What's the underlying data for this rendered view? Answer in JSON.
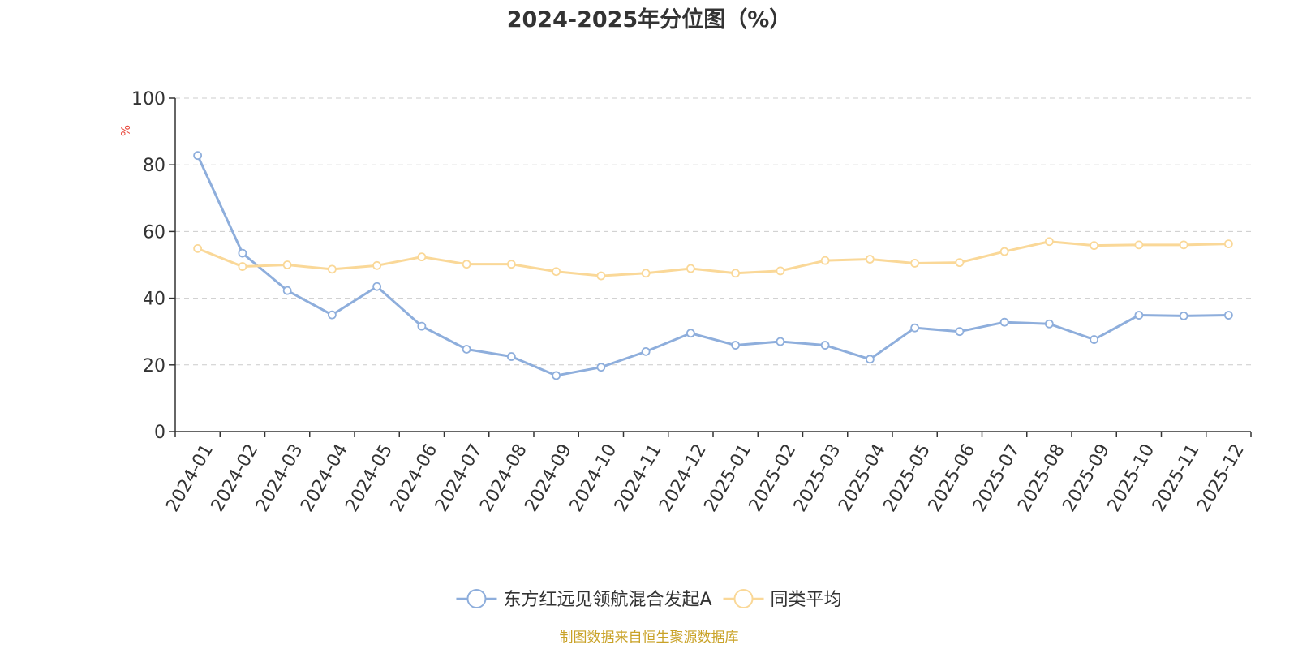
{
  "chart_data": {
    "type": "line",
    "title": "2024-2025年分位图（%）",
    "ylabel": "%",
    "xlabel": "",
    "ylim": [
      0,
      100
    ],
    "yticks": [
      0,
      20,
      40,
      60,
      80,
      100
    ],
    "grid": true,
    "legend_position": "bottom-center",
    "categories": [
      "2024-01",
      "2024-02",
      "2024-03",
      "2024-04",
      "2024-05",
      "2024-06",
      "2024-07",
      "2024-08",
      "2024-09",
      "2024-10",
      "2024-11",
      "2024-12",
      "2025-01",
      "2025-02",
      "2025-03",
      "2025-04",
      "2025-05",
      "2025-06",
      "2025-07",
      "2025-08",
      "2025-09",
      "2025-10",
      "2025-11",
      "2025-12"
    ],
    "series": [
      {
        "name": "东方红远见领航混合发起A",
        "color": "#8eaedc",
        "values": [
          82.8,
          53.5,
          42.3,
          35.0,
          43.5,
          31.6,
          24.7,
          22.5,
          16.8,
          19.3,
          24.0,
          29.5,
          25.9,
          27.0,
          25.9,
          21.7,
          31.1,
          30.0,
          32.8,
          32.3,
          27.6,
          34.9,
          34.7,
          34.9
        ]
      },
      {
        "name": "同类平均",
        "color": "#fad898",
        "values": [
          54.9,
          49.5,
          50.0,
          48.7,
          49.8,
          52.4,
          50.2,
          50.2,
          48.0,
          46.7,
          47.5,
          48.9,
          47.5,
          48.2,
          51.3,
          51.7,
          50.5,
          50.7,
          54.0,
          57.0,
          55.8,
          56.0,
          56.0,
          56.3
        ]
      }
    ]
  },
  "source_text": "制图数据来自恒生聚源数据库",
  "colors": {
    "axis": "#333333",
    "grid": "#cccccc",
    "ylabel": "#e8473b",
    "source": "#c9a227"
  }
}
